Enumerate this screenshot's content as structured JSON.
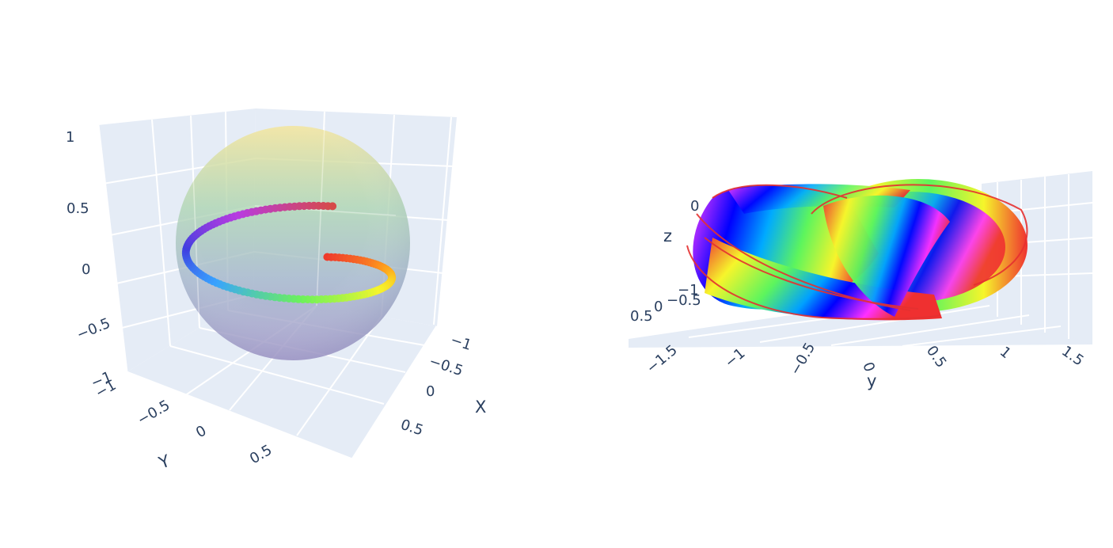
{
  "chart_data": [
    {
      "type": "surface",
      "subtype": "3d-sphere-with-helix",
      "scene_bg": "#e5ecf6",
      "grid": true,
      "axes": {
        "x": {
          "title": "X",
          "range": [
            -1,
            1
          ],
          "ticks": [
            "−1",
            "−0.5",
            "0",
            "0.5"
          ]
        },
        "y": {
          "title": "Y",
          "range": [
            -1,
            1
          ],
          "ticks": [
            "−1",
            "−0.5",
            "0",
            "0.5"
          ]
        },
        "z": {
          "title": "",
          "range": [
            -1,
            1
          ],
          "ticks": [
            "−1",
            "−0.5",
            "0",
            "0.5",
            "1"
          ]
        }
      },
      "series": [
        {
          "kind": "surface",
          "shape": "unit sphere",
          "radius": 1,
          "opacity": 0.5,
          "colors": [
            "#fde68a",
            "#a7d3b0",
            "#9fb3c8",
            "#9f94c8"
          ]
        },
        {
          "kind": "scatter3d",
          "shape": "helix on sphere",
          "z_range": [
            -0.5,
            0.05
          ],
          "turns": 1,
          "colors": [
            "#ef3b2c",
            "#ff9f1c",
            "#f6f52b",
            "#6df25a",
            "#38a3ff",
            "#3f3fe0",
            "#b83be0",
            "#d64a4a"
          ]
        }
      ]
    },
    {
      "type": "surface",
      "subtype": "3d-twisted-ribbon",
      "scene_bg": "#e5ecf6",
      "grid": true,
      "axes": {
        "x": {
          "title": "",
          "ticks": [
            "0.5",
            "0",
            "−0.5",
            "−1"
          ]
        },
        "y": {
          "title": "y",
          "range": [
            -1.5,
            1.5
          ],
          "ticks": [
            "−1.5",
            "−1",
            "−0.5",
            "0",
            "0.5",
            "1",
            "1.5"
          ]
        },
        "z": {
          "title": "z",
          "ticks": [
            "0"
          ]
        }
      },
      "series": [
        {
          "kind": "surface",
          "shape": "twisted toroidal ribbon",
          "colorscale": "hsv",
          "colors": [
            "#ef3030",
            "#f6f52b",
            "#5df55d",
            "#00a6ff",
            "#0000ff",
            "#ff30ff",
            "#ef3030"
          ]
        }
      ]
    }
  ]
}
